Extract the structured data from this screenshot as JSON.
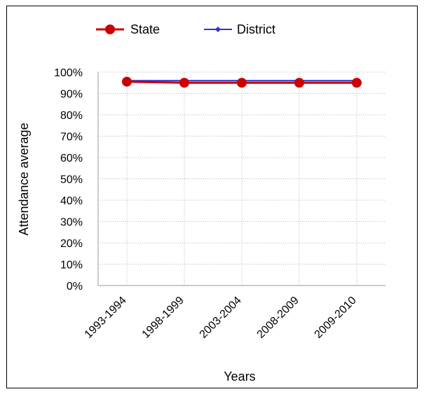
{
  "chart_data": {
    "type": "line",
    "categories": [
      "1993-1994",
      "1998-1999",
      "2003-2004",
      "2008-2009",
      "2009-2010"
    ],
    "series": [
      {
        "name": "State",
        "values": [
          95.5,
          95,
          95,
          95,
          95
        ],
        "color": "#cc0000",
        "marker": "circle"
      },
      {
        "name": "District",
        "values": [
          96,
          96,
          96,
          96,
          96
        ],
        "color": "#3333cc",
        "marker": "small-diamond"
      }
    ],
    "xlabel": "Years",
    "ylabel": "Attendance average",
    "ylim": [
      0,
      100
    ],
    "yticks": [
      "0%",
      "10%",
      "20%",
      "30%",
      "40%",
      "50%",
      "60%",
      "70%",
      "80%",
      "90%",
      "100%"
    ],
    "grid": true,
    "legend": "top"
  }
}
